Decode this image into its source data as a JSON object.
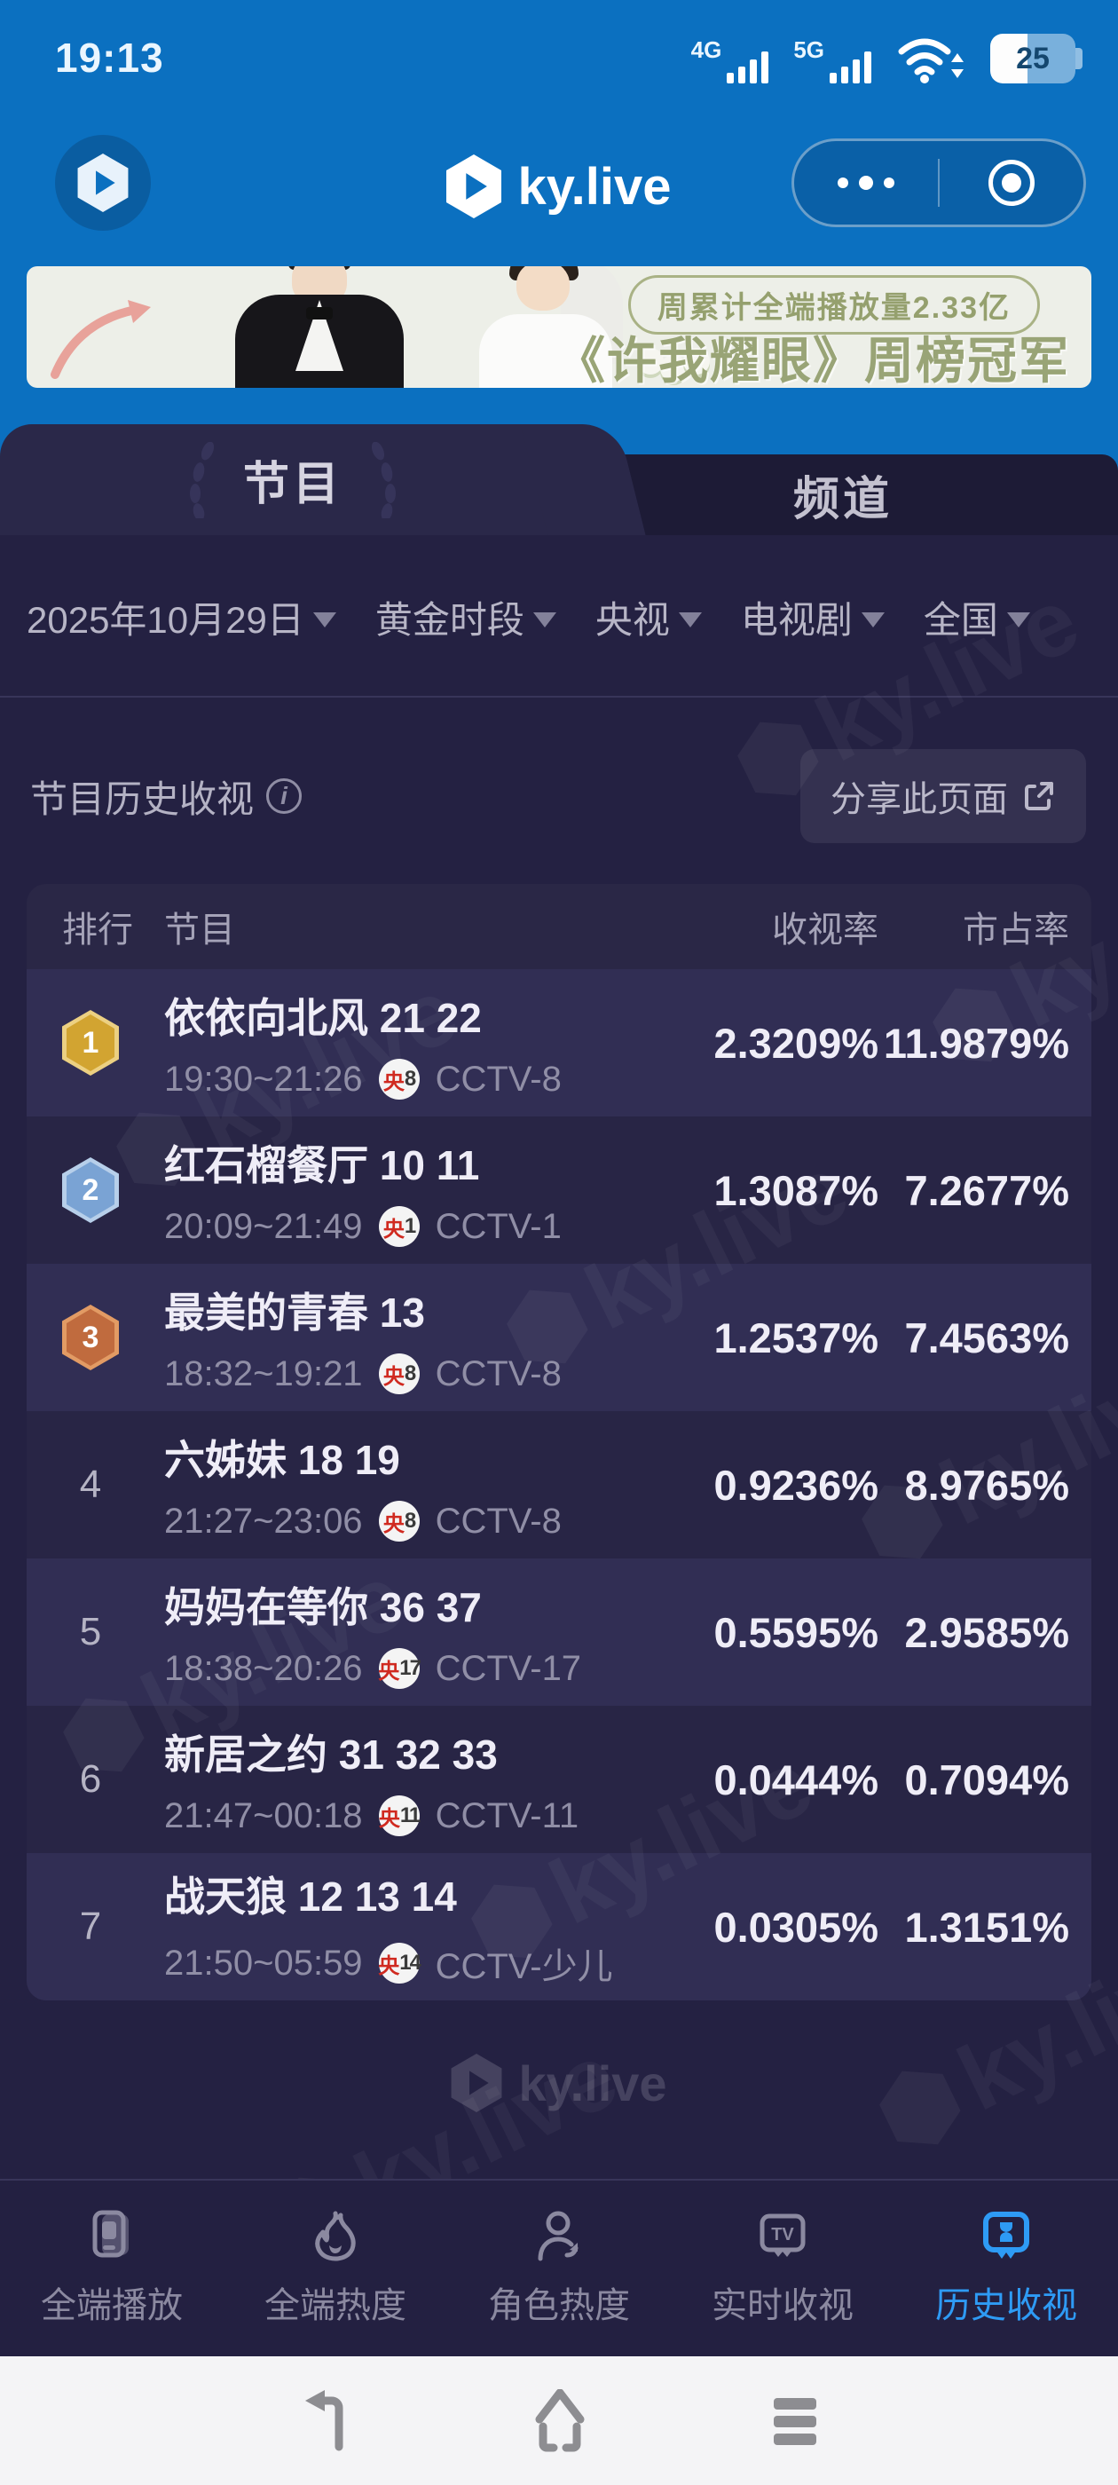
{
  "status_bar": {
    "time": "19:13",
    "net1": "4G",
    "net2": "5G",
    "battery": "25"
  },
  "header": {
    "app_title": "ky.live"
  },
  "banner": {
    "badge": "周累计全端播放量2.33亿",
    "title": "《许我耀眼》周榜冠军"
  },
  "tabs": {
    "active": "节目",
    "inactive": "频道"
  },
  "filters": [
    {
      "label": "2025年10月29日"
    },
    {
      "label": "黄金时段"
    },
    {
      "label": "央视"
    },
    {
      "label": "电视剧"
    },
    {
      "label": "全国"
    }
  ],
  "section": {
    "title": "节目历史收视",
    "share_label": "分享此页面"
  },
  "table": {
    "headers": {
      "rank": "排行",
      "program": "节目",
      "rating": "收视率",
      "share": "市占率"
    },
    "rows": [
      {
        "rank": "1",
        "medal": "gold",
        "title": "依依向北风 21 22",
        "time": "19:30~21:26",
        "ch_cjk": "央",
        "ch_num": "8",
        "channel": "CCTV-8",
        "rating": "2.3209%",
        "share": "11.9879%"
      },
      {
        "rank": "2",
        "medal": "blue",
        "title": "红石榴餐厅 10 11",
        "time": "20:09~21:49",
        "ch_cjk": "央",
        "ch_num": "1",
        "channel": "CCTV-1",
        "rating": "1.3087%",
        "share": "7.2677%"
      },
      {
        "rank": "3",
        "medal": "bronze",
        "title": "最美的青春 13",
        "time": "18:32~19:21",
        "ch_cjk": "央",
        "ch_num": "8",
        "channel": "CCTV-8",
        "rating": "1.2537%",
        "share": "7.4563%"
      },
      {
        "rank": "4",
        "medal": null,
        "title": "六姊妹 18 19",
        "time": "21:27~23:06",
        "ch_cjk": "央",
        "ch_num": "8",
        "channel": "CCTV-8",
        "rating": "0.9236%",
        "share": "8.9765%"
      },
      {
        "rank": "5",
        "medal": null,
        "title": "妈妈在等你 36 37",
        "time": "18:38~20:26",
        "ch_cjk": "央",
        "ch_num": "17",
        "channel": "CCTV-17",
        "rating": "0.5595%",
        "share": "2.9585%"
      },
      {
        "rank": "6",
        "medal": null,
        "title": "新居之约 31 32 33",
        "time": "21:47~00:18",
        "ch_cjk": "央",
        "ch_num": "11",
        "channel": "CCTV-11",
        "rating": "0.0444%",
        "share": "0.7094%"
      },
      {
        "rank": "7",
        "medal": null,
        "title": "战天狼 12 13 14",
        "time": "21:50~05:59",
        "ch_cjk": "央",
        "ch_num": "14",
        "channel": "CCTV-少儿",
        "rating": "0.0305%",
        "share": "1.3151%"
      }
    ]
  },
  "footer_logo": "ky.live",
  "watermark": "ky.live",
  "bottom_nav": [
    {
      "label": "全端播放",
      "active": false
    },
    {
      "label": "全端热度",
      "active": false
    },
    {
      "label": "角色热度",
      "active": false
    },
    {
      "label": "实时收视",
      "active": false
    },
    {
      "label": "历史收视",
      "active": true
    }
  ],
  "colors": {
    "header_blue": "#0b70c0",
    "page_bg": "#232041",
    "accent_active": "#2e9bf5",
    "medal_gold": "#d2a431",
    "medal_blue": "#7aa3d4",
    "medal_bronze": "#c06b3e",
    "channel_red": "#d02a20",
    "banner_text": "#99a476"
  }
}
